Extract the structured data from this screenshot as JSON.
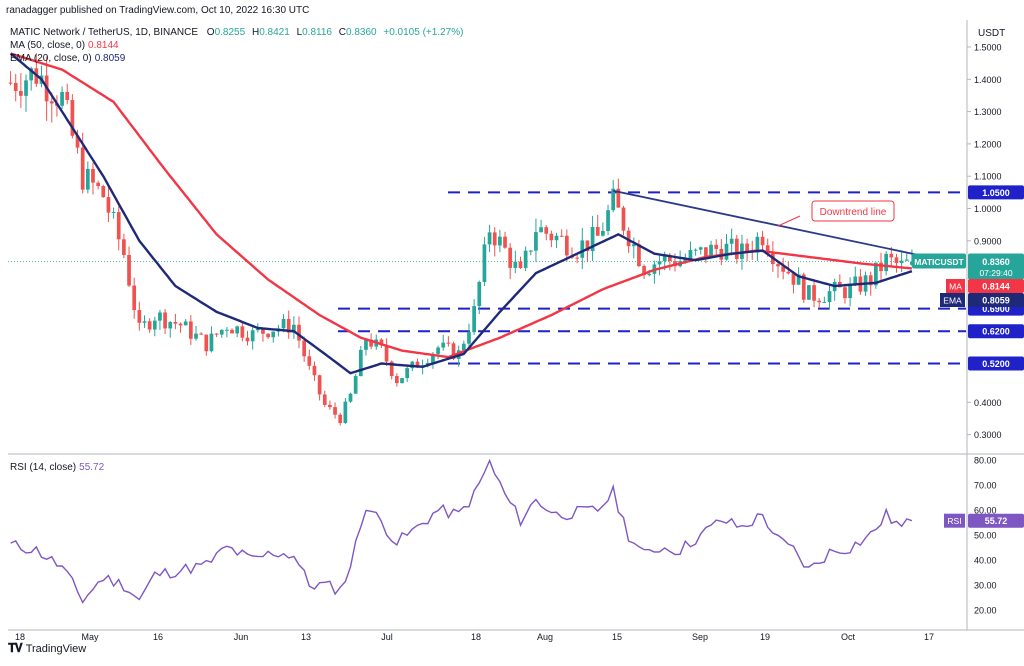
{
  "header": {
    "publisher": "ranadagger published on TradingView.com, Oct 10, 2022 16:30 UTC"
  },
  "symbol": {
    "title": "MATIC Network / TetherUS, 1D, BINANCE",
    "open_label": "O",
    "open": "0.8255",
    "high_label": "H",
    "high": "0.8421",
    "low_label": "L",
    "low": "0.8116",
    "close_label": "C",
    "close": "0.8360",
    "change": "+0.0105 (+1.27%)"
  },
  "indicators": {
    "ma_label": "MA (50, close, 0)",
    "ma_value": "0.8144",
    "ema_label": "EMA (20, close, 0)",
    "ema_value": "0.8059",
    "rsi_label": "RSI (14, close)",
    "rsi_value": "55.72"
  },
  "axis_currency": "USDT",
  "brand": {
    "name": "TradingView"
  },
  "colors": {
    "up": "#26a69a",
    "down": "#ef5350",
    "ma": "#f23645",
    "ema": "#1e2a78",
    "rsi": "#7e57c2",
    "rsi_band": "#ede7f6",
    "level": "#1e22c8",
    "trend": "#2a3a8a"
  },
  "chart_data": [
    {
      "type": "candlestick",
      "title": "MATIC Network / TetherUS, 1D, BINANCE",
      "ylim": [
        0.27,
        1.55
      ],
      "x_ticks": [
        "18",
        "May",
        "16",
        "Jun",
        "13",
        "Jul",
        "18",
        "Aug",
        "15",
        "Sep",
        "19",
        "Oct",
        "17"
      ],
      "y_ticks": [
        "1.5000",
        "1.4000",
        "1.3000",
        "1.2000",
        "1.1000",
        "1.0000",
        "0.9000",
        "0.4000",
        "0.3000"
      ],
      "price_levels": [
        {
          "label": "1.0500",
          "value": 1.05
        },
        {
          "label": "0.6900",
          "value": 0.69
        },
        {
          "label": "0.6200",
          "value": 0.62
        },
        {
          "label": "0.5200",
          "value": 0.52
        }
      ],
      "tags": [
        {
          "label": "MATICUSDT",
          "value": "0.8360",
          "extra": "07:29:40"
        },
        {
          "label": "MA",
          "value": "0.8144"
        },
        {
          "label": "EMA",
          "value": "0.8059"
        }
      ],
      "annotation": "Downtrend line",
      "trendline": {
        "from": {
          "day": 117,
          "price": 1.055
        },
        "to": {
          "day": 178,
          "price": 0.845
        }
      },
      "anchors": [
        {
          "day": 0,
          "price": 1.39
        },
        {
          "day": 5,
          "price": 1.42
        },
        {
          "day": 10,
          "price": 1.34
        },
        {
          "day": 14,
          "price": 1.1
        },
        {
          "day": 18,
          "price": 1.04
        },
        {
          "day": 22,
          "price": 0.86
        },
        {
          "day": 25,
          "price": 0.62
        },
        {
          "day": 28,
          "price": 0.67
        },
        {
          "day": 33,
          "price": 0.64
        },
        {
          "day": 38,
          "price": 0.58
        },
        {
          "day": 42,
          "price": 0.64
        },
        {
          "day": 47,
          "price": 0.61
        },
        {
          "day": 51,
          "price": 0.63
        },
        {
          "day": 55,
          "price": 0.64
        },
        {
          "day": 58,
          "price": 0.5
        },
        {
          "day": 61,
          "price": 0.39
        },
        {
          "day": 64,
          "price": 0.35
        },
        {
          "day": 66,
          "price": 0.42
        },
        {
          "day": 69,
          "price": 0.6
        },
        {
          "day": 72,
          "price": 0.56
        },
        {
          "day": 75,
          "price": 0.47
        },
        {
          "day": 79,
          "price": 0.52
        },
        {
          "day": 83,
          "price": 0.57
        },
        {
          "day": 87,
          "price": 0.55
        },
        {
          "day": 90,
          "price": 0.68
        },
        {
          "day": 93,
          "price": 0.94
        },
        {
          "day": 96,
          "price": 0.87
        },
        {
          "day": 99,
          "price": 0.79
        },
        {
          "day": 102,
          "price": 0.94
        },
        {
          "day": 106,
          "price": 0.91
        },
        {
          "day": 110,
          "price": 0.88
        },
        {
          "day": 114,
          "price": 0.91
        },
        {
          "day": 117,
          "price": 1.02
        },
        {
          "day": 120,
          "price": 0.92
        },
        {
          "day": 123,
          "price": 0.82
        },
        {
          "day": 126,
          "price": 0.84
        },
        {
          "day": 130,
          "price": 0.84
        },
        {
          "day": 134,
          "price": 0.86
        },
        {
          "day": 138,
          "price": 0.88
        },
        {
          "day": 142,
          "price": 0.86
        },
        {
          "day": 146,
          "price": 0.92
        },
        {
          "day": 149,
          "price": 0.84
        },
        {
          "day": 152,
          "price": 0.79
        },
        {
          "day": 155,
          "price": 0.73
        },
        {
          "day": 159,
          "price": 0.74
        },
        {
          "day": 163,
          "price": 0.75
        },
        {
          "day": 167,
          "price": 0.78
        },
        {
          "day": 170,
          "price": 0.84
        },
        {
          "day": 173,
          "price": 0.82
        },
        {
          "day": 175,
          "price": 0.836
        }
      ],
      "ma_anchors": [
        {
          "day": 0,
          "price": 1.48
        },
        {
          "day": 10,
          "price": 1.43
        },
        {
          "day": 20,
          "price": 1.33
        },
        {
          "day": 30,
          "price": 1.12
        },
        {
          "day": 40,
          "price": 0.92
        },
        {
          "day": 50,
          "price": 0.78
        },
        {
          "day": 60,
          "price": 0.67
        },
        {
          "day": 68,
          "price": 0.6
        },
        {
          "day": 76,
          "price": 0.56
        },
        {
          "day": 85,
          "price": 0.54
        },
        {
          "day": 95,
          "price": 0.6
        },
        {
          "day": 105,
          "price": 0.67
        },
        {
          "day": 115,
          "price": 0.75
        },
        {
          "day": 125,
          "price": 0.81
        },
        {
          "day": 135,
          "price": 0.85
        },
        {
          "day": 145,
          "price": 0.87
        },
        {
          "day": 155,
          "price": 0.85
        },
        {
          "day": 165,
          "price": 0.83
        },
        {
          "day": 175,
          "price": 0.8144
        }
      ],
      "ema_anchors": [
        {
          "day": 0,
          "price": 1.48
        },
        {
          "day": 6,
          "price": 1.4
        },
        {
          "day": 12,
          "price": 1.25
        },
        {
          "day": 18,
          "price": 1.1
        },
        {
          "day": 25,
          "price": 0.9
        },
        {
          "day": 32,
          "price": 0.76
        },
        {
          "day": 40,
          "price": 0.68
        },
        {
          "day": 48,
          "price": 0.63
        },
        {
          "day": 55,
          "price": 0.62
        },
        {
          "day": 61,
          "price": 0.55
        },
        {
          "day": 66,
          "price": 0.49
        },
        {
          "day": 72,
          "price": 0.52
        },
        {
          "day": 80,
          "price": 0.51
        },
        {
          "day": 88,
          "price": 0.55
        },
        {
          "day": 95,
          "price": 0.68
        },
        {
          "day": 102,
          "price": 0.8
        },
        {
          "day": 110,
          "price": 0.86
        },
        {
          "day": 118,
          "price": 0.92
        },
        {
          "day": 125,
          "price": 0.86
        },
        {
          "day": 133,
          "price": 0.84
        },
        {
          "day": 140,
          "price": 0.86
        },
        {
          "day": 146,
          "price": 0.87
        },
        {
          "day": 153,
          "price": 0.79
        },
        {
          "day": 160,
          "price": 0.76
        },
        {
          "day": 168,
          "price": 0.77
        },
        {
          "day": 175,
          "price": 0.8059
        }
      ]
    },
    {
      "type": "line",
      "title": "RSI (14, close)",
      "ylim": [
        17,
        82
      ],
      "y_ticks": [
        "80.00",
        "70.00",
        "60.00",
        "50.00",
        "40.00",
        "30.00",
        "20.00"
      ],
      "band": [
        30,
        70
      ],
      "mid": 50,
      "tag": {
        "label": "RSI",
        "value": "55.72"
      },
      "anchors": [
        {
          "day": 0,
          "price": 46
        },
        {
          "day": 5,
          "price": 44
        },
        {
          "day": 10,
          "price": 37
        },
        {
          "day": 14,
          "price": 24
        },
        {
          "day": 18,
          "price": 33
        },
        {
          "day": 22,
          "price": 30
        },
        {
          "day": 25,
          "price": 24
        },
        {
          "day": 28,
          "price": 34
        },
        {
          "day": 33,
          "price": 36
        },
        {
          "day": 38,
          "price": 38
        },
        {
          "day": 42,
          "price": 45
        },
        {
          "day": 47,
          "price": 40
        },
        {
          "day": 51,
          "price": 43
        },
        {
          "day": 55,
          "price": 42
        },
        {
          "day": 58,
          "price": 30
        },
        {
          "day": 61,
          "price": 30
        },
        {
          "day": 64,
          "price": 28
        },
        {
          "day": 66,
          "price": 38
        },
        {
          "day": 69,
          "price": 62
        },
        {
          "day": 72,
          "price": 55
        },
        {
          "day": 75,
          "price": 47
        },
        {
          "day": 79,
          "price": 53
        },
        {
          "day": 83,
          "price": 60
        },
        {
          "day": 87,
          "price": 58
        },
        {
          "day": 90,
          "price": 66
        },
        {
          "day": 93,
          "price": 79
        },
        {
          "day": 96,
          "price": 66
        },
        {
          "day": 99,
          "price": 56
        },
        {
          "day": 102,
          "price": 64
        },
        {
          "day": 106,
          "price": 58
        },
        {
          "day": 110,
          "price": 59
        },
        {
          "day": 114,
          "price": 60
        },
        {
          "day": 117,
          "price": 67
        },
        {
          "day": 120,
          "price": 50
        },
        {
          "day": 123,
          "price": 42
        },
        {
          "day": 126,
          "price": 45
        },
        {
          "day": 130,
          "price": 44
        },
        {
          "day": 134,
          "price": 50
        },
        {
          "day": 138,
          "price": 56
        },
        {
          "day": 142,
          "price": 53
        },
        {
          "day": 146,
          "price": 58
        },
        {
          "day": 149,
          "price": 48
        },
        {
          "day": 152,
          "price": 44
        },
        {
          "day": 155,
          "price": 36
        },
        {
          "day": 159,
          "price": 43
        },
        {
          "day": 163,
          "price": 45
        },
        {
          "day": 167,
          "price": 50
        },
        {
          "day": 170,
          "price": 58
        },
        {
          "day": 173,
          "price": 53
        },
        {
          "day": 175,
          "price": 55.72
        }
      ]
    }
  ]
}
